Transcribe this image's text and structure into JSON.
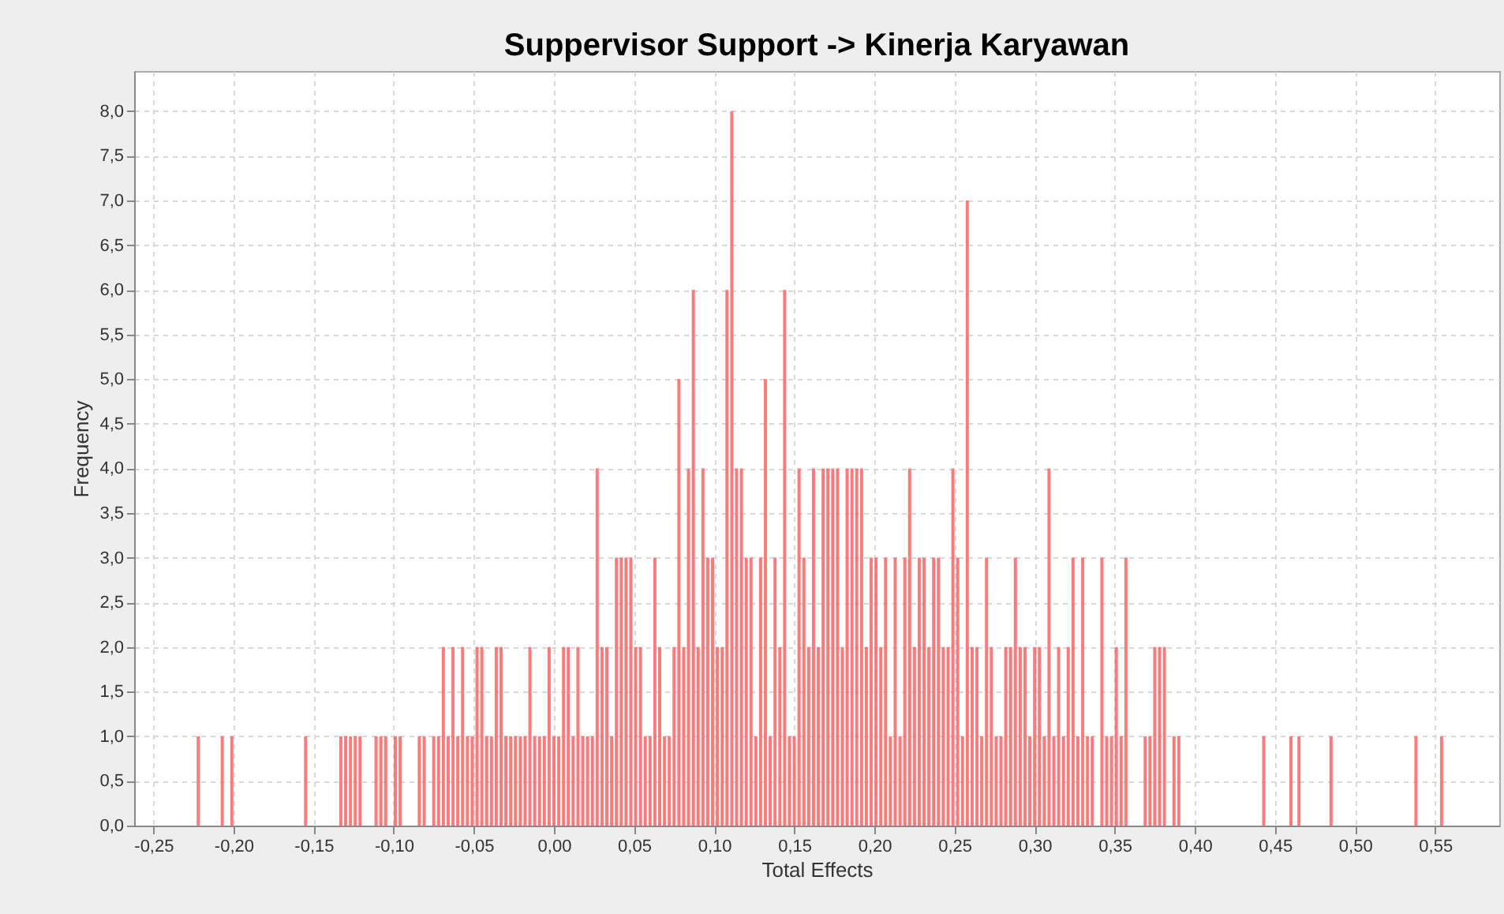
{
  "chart_data": {
    "type": "bar",
    "title": "Suppervisor Support  -> Kinerja Karyawan",
    "xlabel": "Total Effects",
    "ylabel": "Frequency",
    "color": "#ff6b6b",
    "grid": true,
    "xlim": [
      -0.262,
      0.59
    ],
    "ylim": [
      0,
      8.45
    ],
    "xticks": [
      {
        "value": -0.25,
        "label": "-0,25"
      },
      {
        "value": -0.2,
        "label": "-0,20"
      },
      {
        "value": -0.15,
        "label": "-0,15"
      },
      {
        "value": -0.1,
        "label": "-0,10"
      },
      {
        "value": -0.05,
        "label": "-0,05"
      },
      {
        "value": 0,
        "label": "0,00"
      },
      {
        "value": 0.05,
        "label": "0,05"
      },
      {
        "value": 0.1,
        "label": "0,10"
      },
      {
        "value": 0.15,
        "label": "0,15"
      },
      {
        "value": 0.2,
        "label": "0,20"
      },
      {
        "value": 0.25,
        "label": "0,25"
      },
      {
        "value": 0.3,
        "label": "0,30"
      },
      {
        "value": 0.35,
        "label": "0,35"
      },
      {
        "value": 0.4,
        "label": "0,40"
      },
      {
        "value": 0.45,
        "label": "0,45"
      },
      {
        "value": 0.5,
        "label": "0,50"
      },
      {
        "value": 0.55,
        "label": "0,55"
      }
    ],
    "yticks": [
      {
        "value": 0,
        "label": "0,0"
      },
      {
        "value": 0.5,
        "label": "0,5"
      },
      {
        "value": 1,
        "label": "1,0"
      },
      {
        "value": 1.5,
        "label": "1,5"
      },
      {
        "value": 2,
        "label": "2,0"
      },
      {
        "value": 2.5,
        "label": "2,5"
      },
      {
        "value": 3,
        "label": "3,0"
      },
      {
        "value": 3.5,
        "label": "3,5"
      },
      {
        "value": 4,
        "label": "4,0"
      },
      {
        "value": 4.5,
        "label": "4,5"
      },
      {
        "value": 5,
        "label": "5,0"
      },
      {
        "value": 5.5,
        "label": "5,5"
      },
      {
        "value": 6,
        "label": "6,0"
      },
      {
        "value": 6.5,
        "label": "6,5"
      },
      {
        "value": 7,
        "label": "7,0"
      },
      {
        "value": 7.5,
        "label": "7,5"
      },
      {
        "value": 8,
        "label": "8,0"
      }
    ],
    "x": [
      -0.222,
      -0.207,
      -0.201,
      -0.155,
      -0.133,
      -0.13,
      -0.127,
      -0.124,
      -0.121,
      -0.111,
      -0.108,
      -0.105,
      -0.099,
      -0.096,
      -0.084,
      -0.081,
      -0.075,
      -0.072,
      -0.069,
      -0.066,
      -0.063,
      -0.06,
      -0.057,
      -0.054,
      -0.051,
      -0.048,
      -0.045,
      -0.042,
      -0.039,
      -0.036,
      -0.033,
      -0.03,
      -0.027,
      -0.024,
      -0.021,
      -0.018,
      -0.015,
      -0.012,
      -0.009,
      -0.006,
      -0.003,
      0,
      0.003,
      0.006,
      0.009,
      0.012,
      0.015,
      0.018,
      0.021,
      0.024,
      0.027,
      0.03,
      0.033,
      0.036,
      0.039,
      0.042,
      0.045,
      0.048,
      0.051,
      0.054,
      0.057,
      0.06,
      0.063,
      0.066,
      0.069,
      0.072,
      0.075,
      0.078,
      0.081,
      0.084,
      0.087,
      0.09,
      0.093,
      0.096,
      0.099,
      0.102,
      0.105,
      0.108,
      0.111,
      0.114,
      0.117,
      0.12,
      0.123,
      0.126,
      0.129,
      0.132,
      0.135,
      0.138,
      0.141,
      0.144,
      0.147,
      0.15,
      0.153,
      0.156,
      0.159,
      0.162,
      0.165,
      0.168,
      0.171,
      0.174,
      0.177,
      0.18,
      0.183,
      0.186,
      0.189,
      0.192,
      0.195,
      0.198,
      0.201,
      0.204,
      0.207,
      0.21,
      0.213,
      0.216,
      0.219,
      0.222,
      0.225,
      0.228,
      0.231,
      0.234,
      0.237,
      0.24,
      0.243,
      0.246,
      0.249,
      0.252,
      0.255,
      0.258,
      0.261,
      0.264,
      0.267,
      0.27,
      0.273,
      0.276,
      0.279,
      0.282,
      0.285,
      0.288,
      0.291,
      0.294,
      0.297,
      0.3,
      0.303,
      0.306,
      0.309,
      0.312,
      0.315,
      0.318,
      0.321,
      0.324,
      0.327,
      0.33,
      0.333,
      0.336,
      0.342,
      0.345,
      0.348,
      0.351,
      0.354,
      0.357,
      0.369,
      0.372,
      0.375,
      0.378,
      0.381,
      0.387,
      0.39,
      0.443,
      0.46,
      0.465,
      0.485,
      0.538,
      0.554
    ],
    "values": [
      1,
      1,
      1,
      1,
      1,
      1,
      1,
      1,
      1,
      1,
      1,
      1,
      1,
      1,
      1,
      1,
      1,
      1,
      2,
      1,
      2,
      1,
      2,
      1,
      1,
      2,
      2,
      1,
      1,
      2,
      2,
      1,
      1,
      1,
      1,
      1,
      2,
      1,
      1,
      1,
      2,
      1,
      1,
      2,
      2,
      1,
      2,
      1,
      1,
      1,
      4,
      2,
      2,
      1,
      3,
      3,
      3,
      3,
      2,
      2,
      1,
      1,
      3,
      2,
      1,
      1,
      2,
      5,
      2,
      4,
      6,
      2,
      4,
      3,
      3,
      2,
      2,
      6,
      8,
      4,
      4,
      3,
      3,
      1,
      3,
      5,
      1,
      3,
      2,
      6,
      1,
      1,
      4,
      3,
      2,
      4,
      2,
      4,
      4,
      4,
      4,
      2,
      4,
      4,
      4,
      4,
      2,
      3,
      3,
      2,
      3,
      1,
      3,
      1,
      3,
      4,
      2,
      3,
      3,
      2,
      3,
      3,
      2,
      2,
      4,
      3,
      1,
      7,
      2,
      2,
      1,
      3,
      2,
      1,
      1,
      2,
      2,
      3,
      2,
      2,
      1,
      2,
      2,
      1,
      4,
      1,
      2,
      1,
      2,
      3,
      1,
      3,
      1,
      1,
      3,
      1,
      1,
      2,
      1,
      3,
      1,
      1,
      2,
      2,
      2,
      1,
      1,
      1,
      1,
      1,
      1,
      1,
      1
    ]
  }
}
